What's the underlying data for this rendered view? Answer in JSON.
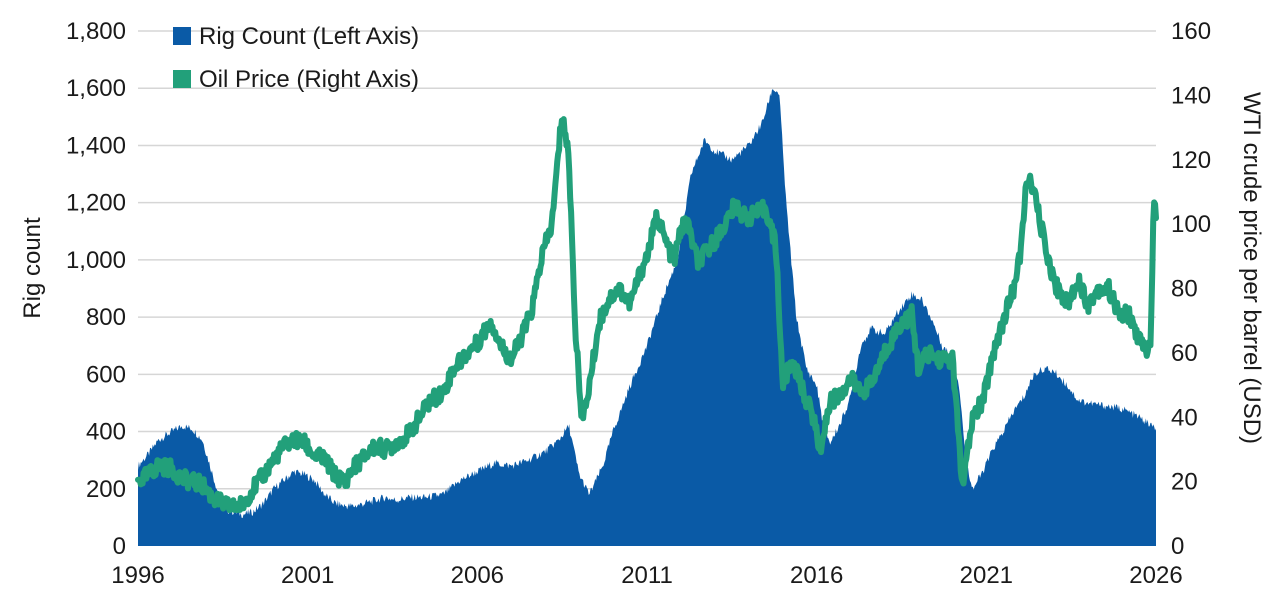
{
  "chart_data": {
    "type": "area+line",
    "title": "",
    "xlabel": "",
    "ylabel_left": "Rig count",
    "ylabel_right": "WTI crude price per barrel (USD)",
    "xlim": [
      1996,
      2026
    ],
    "ylim_left": [
      0,
      1800
    ],
    "ylim_right": [
      0,
      160
    ],
    "x_ticks": [
      "1996",
      "2001",
      "2006",
      "2011",
      "2016",
      "2021",
      "2026"
    ],
    "y_left_ticks": [
      "0",
      "200",
      "400",
      "600",
      "800",
      "1,000",
      "1,200",
      "1,400",
      "1,600",
      "1,800"
    ],
    "y_right_ticks": [
      "0",
      "20",
      "40",
      "60",
      "80",
      "100",
      "120",
      "140",
      "160"
    ],
    "grid": "horizontal",
    "legend_position": "top-left",
    "colors": {
      "rig": "#0a5aa6",
      "oil": "#22a07a",
      "grid": "#d6d6d6"
    },
    "series": [
      {
        "name": "Rig Count (Left Axis)",
        "kind": "area",
        "axis": "left",
        "x": [
          1996.0,
          1996.3,
          1996.6,
          1997.0,
          1997.3,
          1997.6,
          1997.9,
          1998.2,
          1998.5,
          1998.8,
          1999.1,
          1999.4,
          1999.7,
          2000.0,
          2000.3,
          2000.6,
          2000.9,
          2001.2,
          2001.5,
          2001.8,
          2002.1,
          2002.4,
          2002.7,
          2003.0,
          2003.3,
          2003.6,
          2004.0,
          2004.5,
          2005.0,
          2005.5,
          2006.0,
          2006.5,
          2007.0,
          2007.5,
          2008.0,
          2008.4,
          2008.7,
          2009.0,
          2009.3,
          2009.7,
          2010.0,
          2010.5,
          2011.0,
          2011.5,
          2011.9,
          2012.3,
          2012.7,
          2013.0,
          2013.5,
          2014.0,
          2014.4,
          2014.7,
          2014.9,
          2015.1,
          2015.4,
          2015.7,
          2016.0,
          2016.2,
          2016.4,
          2016.7,
          2017.0,
          2017.3,
          2017.6,
          2018.0,
          2018.4,
          2018.8,
          2019.1,
          2019.4,
          2019.7,
          2020.0,
          2020.2,
          2020.4,
          2020.6,
          2020.9,
          2021.2,
          2021.5,
          2021.8,
          2022.1,
          2022.4,
          2022.7,
          2023.0,
          2023.4,
          2023.7,
          2024.0,
          2024.5,
          2025.0,
          2025.5,
          2026.0
        ],
        "values": [
          280,
          320,
          370,
          400,
          420,
          410,
          370,
          250,
          130,
          120,
          110,
          120,
          150,
          200,
          230,
          260,
          250,
          230,
          180,
          150,
          140,
          140,
          150,
          160,
          170,
          160,
          170,
          170,
          180,
          230,
          260,
          290,
          280,
          300,
          330,
          370,
          420,
          250,
          180,
          280,
          400,
          560,
          700,
          880,
          1000,
          1300,
          1420,
          1380,
          1350,
          1400,
          1480,
          1600,
          1580,
          1200,
          800,
          620,
          560,
          420,
          360,
          430,
          520,
          700,
          760,
          740,
          820,
          880,
          860,
          790,
          700,
          660,
          560,
          300,
          200,
          260,
          340,
          400,
          470,
          520,
          600,
          620,
          610,
          560,
          510,
          500,
          490,
          480,
          450,
          410
        ]
      },
      {
        "name": "Oil Price (Right Axis)",
        "kind": "line",
        "axis": "right",
        "x": [
          1996.0,
          1996.3,
          1996.6,
          1997.0,
          1997.3,
          1997.6,
          1997.9,
          1998.2,
          1998.5,
          1998.8,
          1999.1,
          1999.4,
          1999.7,
          2000.0,
          2000.3,
          2000.6,
          2000.9,
          2001.2,
          2001.5,
          2001.8,
          2002.1,
          2002.4,
          2002.7,
          2003.0,
          2003.3,
          2003.6,
          2004.0,
          2004.3,
          2004.6,
          2005.0,
          2005.3,
          2005.7,
          2006.0,
          2006.4,
          2006.7,
          2007.0,
          2007.3,
          2007.6,
          2007.9,
          2008.2,
          2008.5,
          2008.7,
          2008.9,
          2009.1,
          2009.3,
          2009.6,
          2009.9,
          2010.2,
          2010.5,
          2010.8,
          2011.0,
          2011.3,
          2011.5,
          2011.8,
          2012.0,
          2012.2,
          2012.5,
          2012.8,
          2013.0,
          2013.3,
          2013.6,
          2013.9,
          2014.2,
          2014.5,
          2014.8,
          2015.0,
          2015.3,
          2015.6,
          2015.9,
          2016.1,
          2016.4,
          2016.7,
          2017.0,
          2017.3,
          2017.6,
          2018.0,
          2018.4,
          2018.8,
          2019.0,
          2019.3,
          2019.6,
          2020.0,
          2020.2,
          2020.3,
          2020.6,
          2020.9,
          2021.2,
          2021.5,
          2021.8,
          2022.0,
          2022.2,
          2022.4,
          2022.7,
          2023.0,
          2023.4,
          2023.7,
          2024.0,
          2024.3,
          2024.6,
          2024.9,
          2025.2,
          2025.5,
          2025.7,
          2025.85,
          2025.93,
          2026.0
        ],
        "values": [
          20,
          22,
          25,
          24,
          21,
          20,
          19,
          15,
          13,
          12,
          13,
          18,
          22,
          27,
          31,
          33,
          32,
          28,
          27,
          22,
          20,
          25,
          28,
          31,
          30,
          32,
          35,
          40,
          45,
          48,
          55,
          60,
          63,
          70,
          62,
          58,
          65,
          73,
          90,
          100,
          135,
          120,
          65,
          38,
          50,
          70,
          77,
          80,
          75,
          85,
          90,
          103,
          96,
          88,
          99,
          100,
          88,
          92,
          95,
          100,
          106,
          102,
          103,
          105,
          93,
          50,
          58,
          48,
          40,
          30,
          45,
          47,
          52,
          48,
          50,
          60,
          68,
          72,
          55,
          60,
          58,
          58,
          32,
          18,
          40,
          45,
          60,
          70,
          80,
          90,
          115,
          110,
          95,
          82,
          75,
          83,
          75,
          80,
          80,
          72,
          72,
          64,
          61,
          63,
          110,
          100
        ]
      }
    ]
  }
}
